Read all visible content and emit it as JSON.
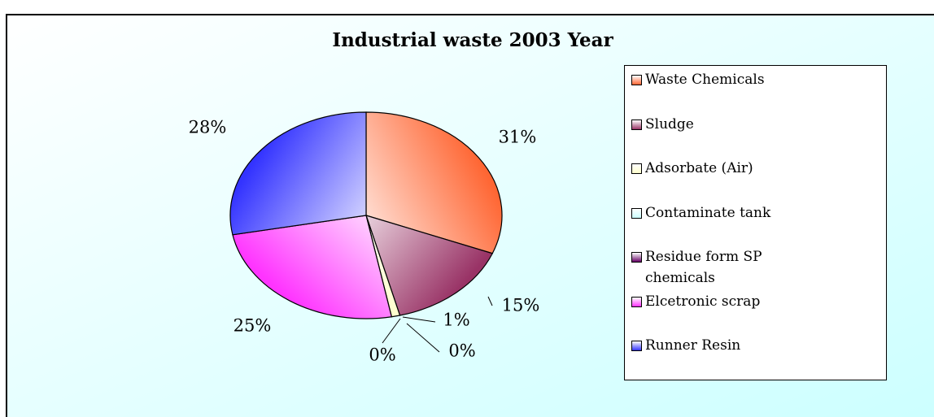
{
  "chart_data": {
    "type": "pie",
    "title": "Industrial waste 2003 Year",
    "categories": [
      "Waste Chemicals",
      "Sludge",
      "Adsorbate (Air)",
      "Contaminate tank",
      "Residue form SP chemicals",
      "Elcetronic scrap",
      "Runner Resin"
    ],
    "values": [
      31,
      15,
      1,
      0,
      0,
      25,
      28
    ],
    "value_labels": [
      "31%",
      "15%",
      "1%",
      "0%",
      "0%",
      "25%",
      "28%"
    ],
    "colors": [
      "#ff6633",
      "#993366",
      "#ffffcc",
      "#ccffff",
      "#660066",
      "#ff33ff",
      "#3333ff"
    ],
    "legend": "right"
  }
}
